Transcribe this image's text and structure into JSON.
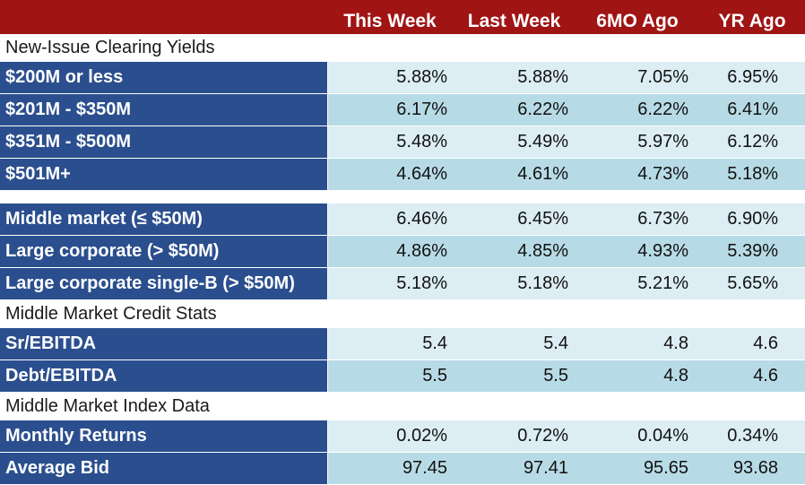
{
  "header": {
    "columns": [
      "This Week",
      "Last Week",
      "6MO Ago",
      "YR Ago"
    ]
  },
  "sections": [
    {
      "title": "New-Issue Clearing Yields",
      "rows": [
        {
          "label": "$200M or less",
          "values": [
            "5.88%",
            "5.88%",
            "7.05%",
            "6.95%"
          ]
        },
        {
          "label": "$201M - $350M",
          "values": [
            "6.17%",
            "6.22%",
            "6.22%",
            "6.41%"
          ]
        },
        {
          "label": "$351M - $500M",
          "values": [
            "5.48%",
            "5.49%",
            "5.97%",
            "6.12%"
          ]
        },
        {
          "label": "$501M+",
          "values": [
            "4.64%",
            "4.61%",
            "4.73%",
            "5.18%"
          ]
        }
      ]
    },
    {
      "title": "",
      "rows": [
        {
          "label": "Middle market (≤ $50M)",
          "values": [
            "6.46%",
            "6.45%",
            "6.73%",
            "6.90%"
          ]
        },
        {
          "label": "Large corporate (> $50M)",
          "values": [
            "4.86%",
            "4.85%",
            "4.93%",
            "5.39%"
          ]
        },
        {
          "label": "Large corporate single-B (> $50M)",
          "values": [
            "5.18%",
            "5.18%",
            "5.21%",
            "5.65%"
          ]
        }
      ]
    },
    {
      "title": "Middle Market Credit Stats",
      "rows": [
        {
          "label": "Sr/EBITDA",
          "values": [
            "5.4",
            "5.4",
            "4.8",
            "4.6"
          ]
        },
        {
          "label": "Debt/EBITDA",
          "values": [
            "5.5",
            "5.5",
            "4.8",
            "4.6"
          ]
        }
      ]
    },
    {
      "title": "Middle Market Index Data",
      "rows": [
        {
          "label": "Monthly Returns",
          "values": [
            "0.02%",
            "0.72%",
            "0.04%",
            "0.34%"
          ]
        },
        {
          "label": "Average Bid",
          "values": [
            "97.45",
            "97.41",
            "95.65",
            "93.68"
          ]
        }
      ]
    }
  ],
  "colors": {
    "header_bg": "#a01414",
    "label_bg": "#2b4f8e",
    "row_light": "#dcedf4",
    "row_dark": "#b7dbe6"
  }
}
